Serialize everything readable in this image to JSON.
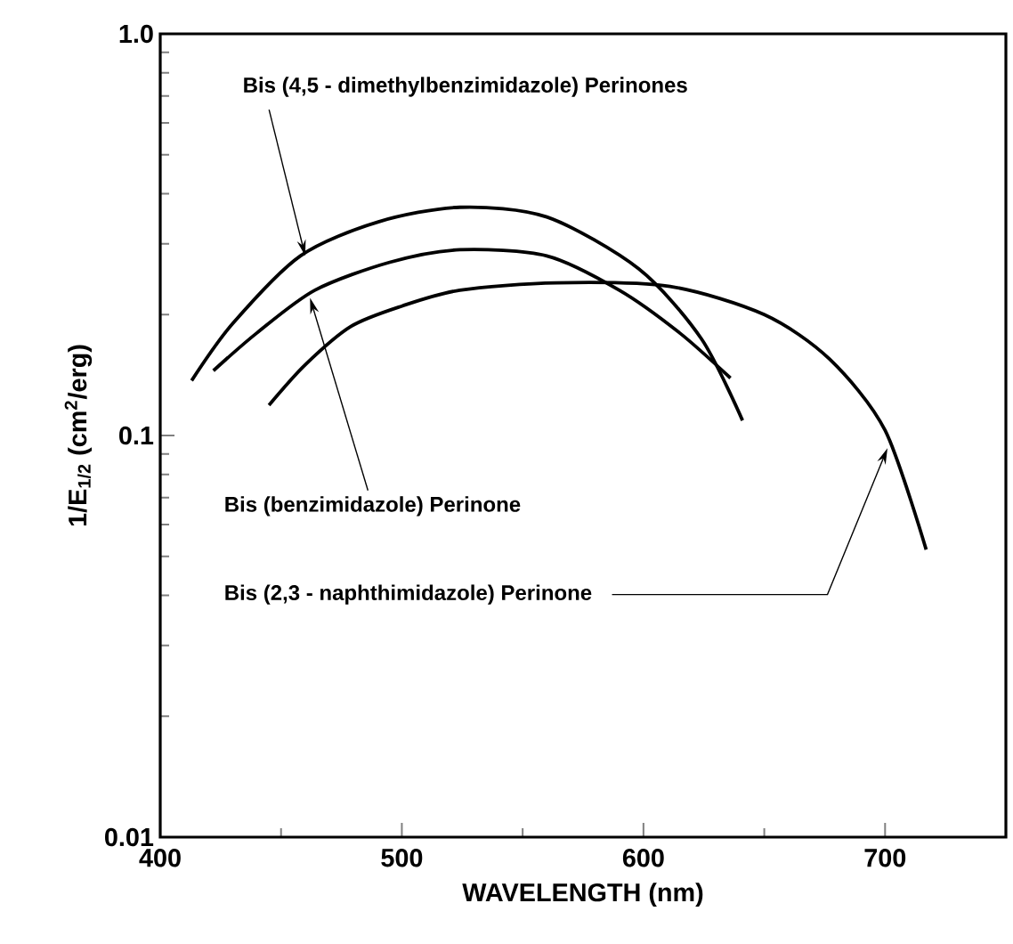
{
  "chart_data": {
    "type": "line",
    "xlabel": "WAVELENGTH  (nm)",
    "ylabel": "1/E$_{1/2}$ (cm$^{2}$/erg)",
    "log": "y",
    "xlim": [
      400,
      750
    ],
    "ylim": [
      0.01,
      1.0
    ],
    "xticks": [
      400,
      500,
      600,
      700
    ],
    "yticks": [
      0.01,
      0.1,
      {
        "value": 1.0,
        "label": "1.0"
      }
    ],
    "grid": false,
    "marker": "none",
    "line_style": "solid",
    "annotations": [
      {
        "text": "Bis (4,5 - dimethylbenzimidazole) Perinones",
        "x": 460,
        "y": 0.28
      },
      {
        "text": "Bis (benzimidazole) Perinone",
        "x": 462,
        "y": 0.22
      },
      {
        "text": "Bis (2,3 - naphthimidazole) Perinone",
        "x": 701,
        "y": 0.093
      }
    ],
    "series": [
      {
        "color": "#000000",
        "x": [
          413,
          430,
          458,
          490,
          524,
          560,
          598,
          624,
          641
        ],
        "values": [
          0.137,
          0.19,
          0.28,
          0.34,
          0.37,
          0.35,
          0.26,
          0.174,
          0.109
        ]
      },
      {
        "color": "#000000",
        "x": [
          422,
          440,
          464,
          495,
          524,
          560,
          590,
          615,
          636
        ],
        "values": [
          0.145,
          0.18,
          0.23,
          0.27,
          0.29,
          0.28,
          0.23,
          0.18,
          0.139
        ]
      },
      {
        "color": "#000000",
        "x": [
          445,
          460,
          479,
          500,
          524,
          564,
          611,
          650,
          677,
          700,
          717
        ],
        "values": [
          0.119,
          0.15,
          0.187,
          0.21,
          0.23,
          0.24,
          0.235,
          0.2,
          0.155,
          0.103,
          0.052
        ]
      }
    ]
  }
}
